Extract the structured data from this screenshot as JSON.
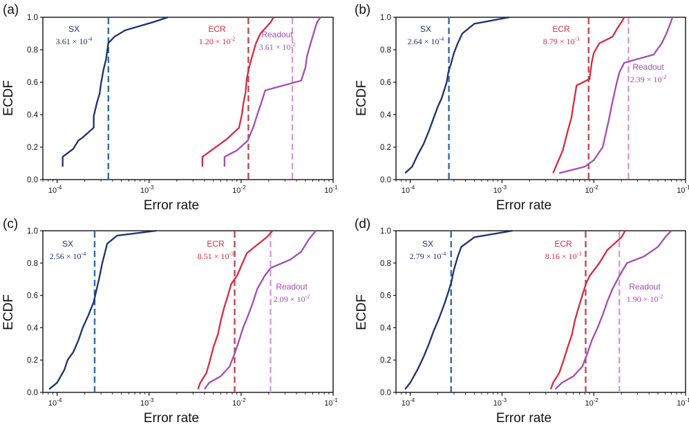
{
  "figure": {
    "x_label": "Error rate",
    "y_label": "ECDF"
  },
  "chart_data": [
    {
      "type": "line",
      "panel_label": "(a)",
      "xlabel": "Error rate",
      "ylabel": "ECDF",
      "xscale": "log",
      "xlim": [
        7e-05,
        0.1
      ],
      "ylim": [
        0,
        1
      ],
      "xticks": [
        {
          "label": "10",
          "exp": "-4",
          "value": 0.0001
        },
        {
          "label": "10",
          "exp": "-3",
          "value": 0.001
        },
        {
          "label": "10",
          "exp": "-2",
          "value": 0.01
        },
        {
          "label": "10",
          "exp": "-1",
          "value": 0.1
        }
      ],
      "yticks": [
        "0.0",
        "0.2",
        "0.4",
        "0.6",
        "0.8",
        "1.0"
      ],
      "series": [
        {
          "name": "SX",
          "color": "#1b2f6b",
          "x": [
            0.000115,
            0.000115,
            0.00015,
            0.00017,
            0.00019,
            0.00025,
            0.00025,
            0.00027,
            0.00029,
            0.0003,
            0.00032,
            0.00034,
            0.00036,
            0.00042,
            0.00055,
            0.0011,
            0.0016
          ],
          "y": [
            0.08,
            0.14,
            0.19,
            0.24,
            0.26,
            0.32,
            0.39,
            0.47,
            0.53,
            0.59,
            0.68,
            0.74,
            0.84,
            0.88,
            0.92,
            0.97,
            1.0
          ]
        },
        {
          "name": "ECR",
          "color": "#d42a40",
          "x": [
            0.0038,
            0.0038,
            0.007,
            0.0095,
            0.0102,
            0.0106,
            0.0112,
            0.0115,
            0.0122,
            0.0132,
            0.0145,
            0.0162,
            0.021,
            0.0225
          ],
          "y": [
            0.08,
            0.14,
            0.25,
            0.32,
            0.4,
            0.47,
            0.54,
            0.62,
            0.69,
            0.76,
            0.84,
            0.9,
            0.97,
            1.0
          ]
        },
        {
          "name": "Readout",
          "color": "#a24bb0",
          "x": [
            0.0066,
            0.0066,
            0.009,
            0.0118,
            0.0135,
            0.015,
            0.0165,
            0.0183,
            0.045,
            0.05,
            0.052,
            0.057,
            0.062,
            0.067,
            0.073
          ],
          "y": [
            0.08,
            0.14,
            0.18,
            0.24,
            0.32,
            0.4,
            0.47,
            0.55,
            0.61,
            0.69,
            0.76,
            0.84,
            0.91,
            0.97,
            1.0
          ]
        }
      ],
      "vlines": [
        {
          "name": "SX",
          "value": 0.000361,
          "color": "#2e6aaa",
          "label": "SX",
          "mantissa": "3.61",
          "exponent": "-4",
          "text_color": "#1b2f6b"
        },
        {
          "name": "ECR",
          "value": 0.012,
          "color": "#c0474f",
          "label": "ECR",
          "mantissa": "1.20",
          "exponent": "-2",
          "text_color": "#d42a40"
        },
        {
          "name": "Readout",
          "value": 0.0361,
          "color": "#d79ad8",
          "label": "Readout",
          "mantissa": "3.61",
          "exponent": "-2",
          "text_color": "#a24bb0"
        }
      ]
    },
    {
      "type": "line",
      "panel_label": "(b)",
      "xlabel": "Error rate",
      "ylabel": "ECDF",
      "xscale": "log",
      "xlim": [
        7e-05,
        0.1
      ],
      "ylim": [
        0,
        1
      ],
      "xticks": [
        {
          "label": "10",
          "exp": "-4",
          "value": 0.0001
        },
        {
          "label": "10",
          "exp": "-3",
          "value": 0.001
        },
        {
          "label": "10",
          "exp": "-2",
          "value": 0.01
        },
        {
          "label": "10",
          "exp": "-1",
          "value": 0.1
        }
      ],
      "yticks": [
        "0.0",
        "0.2",
        "0.4",
        "0.6",
        "0.8",
        "1.0"
      ],
      "series": [
        {
          "name": "SX",
          "color": "#1b2f6b",
          "x": [
            8.8e-05,
            0.000105,
            0.00012,
            0.00014,
            0.00016,
            0.00018,
            0.0002,
            0.00022,
            0.00025,
            0.00026,
            0.00028,
            0.0003,
            0.00033,
            0.00037,
            0.0005,
            0.0012
          ],
          "y": [
            0.04,
            0.08,
            0.15,
            0.22,
            0.3,
            0.38,
            0.45,
            0.5,
            0.6,
            0.66,
            0.72,
            0.78,
            0.84,
            0.9,
            0.96,
            1.0
          ]
        },
        {
          "name": "ECR",
          "color": "#d42a40",
          "x": [
            0.0036,
            0.004,
            0.0046,
            0.0052,
            0.0057,
            0.006,
            0.0065,
            0.009,
            0.0095,
            0.01,
            0.0115,
            0.016,
            0.018,
            0.02,
            0.0215
          ],
          "y": [
            0.04,
            0.1,
            0.18,
            0.3,
            0.38,
            0.46,
            0.58,
            0.62,
            0.72,
            0.78,
            0.84,
            0.88,
            0.93,
            0.97,
            1.0
          ]
        },
        {
          "name": "Readout",
          "color": "#a24bb0",
          "x": [
            0.0042,
            0.008,
            0.01,
            0.0125,
            0.0145,
            0.016,
            0.0175,
            0.019,
            0.0215,
            0.045,
            0.055,
            0.062,
            0.068,
            0.072
          ],
          "y": [
            0.04,
            0.08,
            0.12,
            0.2,
            0.36,
            0.48,
            0.58,
            0.66,
            0.72,
            0.77,
            0.84,
            0.9,
            0.96,
            1.0
          ]
        }
      ],
      "vlines": [
        {
          "name": "SX",
          "value": 0.000264,
          "color": "#2e6aaa",
          "label": "SX",
          "mantissa": "2.64",
          "exponent": "-4",
          "text_color": "#1b2f6b"
        },
        {
          "name": "ECR",
          "value": 0.00879,
          "color": "#c0474f",
          "label": "ECR",
          "mantissa": "8.79",
          "exponent": "-3",
          "text_color": "#d42a40"
        },
        {
          "name": "Readout",
          "value": 0.0239,
          "color": "#d79ad8",
          "label": "Readout",
          "mantissa": "2.39",
          "exponent": "-2",
          "text_color": "#a24bb0"
        }
      ]
    },
    {
      "type": "line",
      "panel_label": "(c)",
      "xlabel": "Error rate",
      "ylabel": "ECDF",
      "xscale": "log",
      "xlim": [
        7e-05,
        0.1
      ],
      "ylim": [
        0,
        1
      ],
      "xticks": [
        {
          "label": "10",
          "exp": "-4",
          "value": 0.0001
        },
        {
          "label": "10",
          "exp": "-3",
          "value": 0.001
        },
        {
          "label": "10",
          "exp": "-2",
          "value": 0.01
        },
        {
          "label": "10",
          "exp": "-1",
          "value": 0.1
        }
      ],
      "yticks": [
        "0.0",
        "0.2",
        "0.4",
        "0.6",
        "0.8",
        "1.0"
      ],
      "series": [
        {
          "name": "SX",
          "color": "#1b2f6b",
          "x": [
            8.2e-05,
            0.0001,
            0.00012,
            0.00013,
            0.00015,
            0.00017,
            0.00019,
            0.00022,
            0.00025,
            0.00027,
            0.00029,
            0.00031,
            0.00033,
            0.00035,
            0.00045,
            0.0012
          ],
          "y": [
            0.02,
            0.06,
            0.14,
            0.2,
            0.25,
            0.32,
            0.4,
            0.48,
            0.56,
            0.64,
            0.72,
            0.8,
            0.86,
            0.92,
            0.97,
            1.0
          ]
        },
        {
          "name": "ECR",
          "color": "#d42a40",
          "x": [
            0.0034,
            0.0036,
            0.0042,
            0.0046,
            0.005,
            0.0056,
            0.006,
            0.0065,
            0.0072,
            0.0078,
            0.009,
            0.01,
            0.0115,
            0.014,
            0.019,
            0.022
          ],
          "y": [
            0.02,
            0.06,
            0.12,
            0.2,
            0.28,
            0.36,
            0.44,
            0.52,
            0.6,
            0.67,
            0.72,
            0.78,
            0.86,
            0.9,
            0.96,
            1.0
          ]
        },
        {
          "name": "Readout",
          "color": "#a24bb0",
          "x": [
            0.004,
            0.0045,
            0.006,
            0.0075,
            0.0085,
            0.0095,
            0.0105,
            0.012,
            0.0135,
            0.015,
            0.018,
            0.021,
            0.034,
            0.045,
            0.055,
            0.065
          ],
          "y": [
            0.02,
            0.06,
            0.1,
            0.16,
            0.24,
            0.32,
            0.4,
            0.48,
            0.56,
            0.64,
            0.72,
            0.77,
            0.82,
            0.87,
            0.95,
            1.0
          ]
        }
      ],
      "vlines": [
        {
          "name": "SX",
          "value": 0.000256,
          "color": "#2e6aaa",
          "label": "SX",
          "mantissa": "2.56",
          "exponent": "-4",
          "text_color": "#1b2f6b"
        },
        {
          "name": "ECR",
          "value": 0.00851,
          "color": "#c0474f",
          "label": "ECR",
          "mantissa": "8.51",
          "exponent": "-3",
          "text_color": "#d42a40"
        },
        {
          "name": "Readout",
          "value": 0.0209,
          "color": "#d79ad8",
          "label": "Readout",
          "mantissa": "2.09",
          "exponent": "-2",
          "text_color": "#a24bb0"
        }
      ]
    },
    {
      "type": "line",
      "panel_label": "(d)",
      "xlabel": "Error rate",
      "ylabel": "ECDF",
      "xscale": "log",
      "xlim": [
        7e-05,
        0.1
      ],
      "ylim": [
        0,
        1
      ],
      "xticks": [
        {
          "label": "10",
          "exp": "-4",
          "value": 0.0001
        },
        {
          "label": "10",
          "exp": "-3",
          "value": 0.001
        },
        {
          "label": "10",
          "exp": "-2",
          "value": 0.01
        },
        {
          "label": "10",
          "exp": "-1",
          "value": 0.1
        }
      ],
      "yticks": [
        "0.0",
        "0.2",
        "0.4",
        "0.6",
        "0.8",
        "1.0"
      ],
      "series": [
        {
          "name": "SX",
          "color": "#1b2f6b",
          "x": [
            8.8e-05,
            0.0001,
            0.00012,
            0.00014,
            0.00016,
            0.00018,
            0.0002,
            0.00022,
            0.00024,
            0.00026,
            0.00028,
            0.0003,
            0.00033,
            0.00036,
            0.0005,
            0.0013
          ],
          "y": [
            0.02,
            0.06,
            0.14,
            0.22,
            0.3,
            0.38,
            0.44,
            0.5,
            0.56,
            0.62,
            0.68,
            0.76,
            0.84,
            0.9,
            0.96,
            1.0
          ]
        },
        {
          "name": "ECR",
          "color": "#d42a40",
          "x": [
            0.0034,
            0.0036,
            0.0042,
            0.0047,
            0.0052,
            0.0058,
            0.0062,
            0.0068,
            0.0075,
            0.0082,
            0.009,
            0.0115,
            0.014,
            0.02,
            0.022
          ],
          "y": [
            0.02,
            0.06,
            0.12,
            0.2,
            0.28,
            0.36,
            0.44,
            0.52,
            0.6,
            0.67,
            0.72,
            0.8,
            0.88,
            0.96,
            1.0
          ]
        },
        {
          "name": "Readout",
          "color": "#a24bb0",
          "x": [
            0.0038,
            0.0045,
            0.006,
            0.0075,
            0.0085,
            0.0095,
            0.011,
            0.0125,
            0.014,
            0.016,
            0.019,
            0.023,
            0.035,
            0.05,
            0.06,
            0.07
          ],
          "y": [
            0.02,
            0.06,
            0.1,
            0.16,
            0.24,
            0.32,
            0.4,
            0.48,
            0.56,
            0.64,
            0.72,
            0.8,
            0.84,
            0.9,
            0.96,
            1.0
          ]
        }
      ],
      "vlines": [
        {
          "name": "SX",
          "value": 0.000279,
          "color": "#2e6aaa",
          "label": "SX",
          "mantissa": "2.79",
          "exponent": "-4",
          "text_color": "#1b2f6b"
        },
        {
          "name": "ECR",
          "value": 0.00816,
          "color": "#c0474f",
          "label": "ECR",
          "mantissa": "8.16",
          "exponent": "-3",
          "text_color": "#d42a40"
        },
        {
          "name": "Readout",
          "value": 0.019,
          "color": "#d79ad8",
          "label": "Readout",
          "mantissa": "1.90",
          "exponent": "-2",
          "text_color": "#a24bb0"
        }
      ]
    }
  ]
}
